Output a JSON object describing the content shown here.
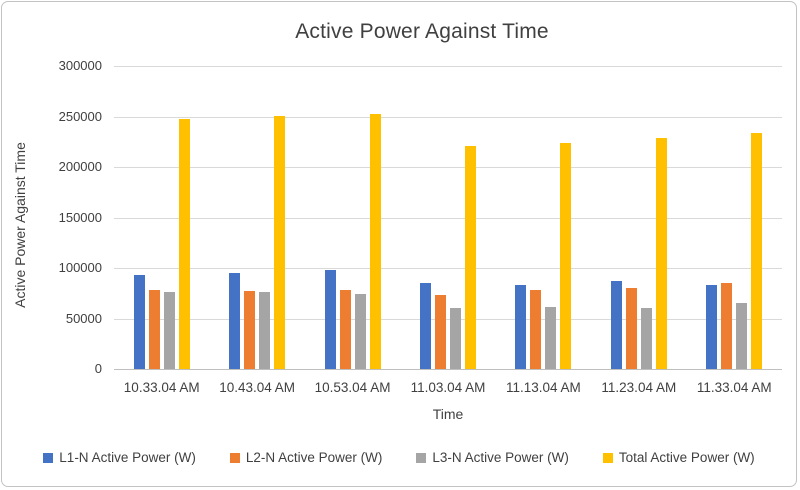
{
  "chart_data": {
    "type": "bar",
    "title": "Active Power Against Time",
    "xlabel": "Time",
    "ylabel": "Active Power Against Time",
    "categories": [
      "10.33.04 AM",
      "10.43.04 AM",
      "10.53.04 AM",
      "11.03.04 AM",
      "11.13.04 AM",
      "11.23.04 AM",
      "11.33.04 AM"
    ],
    "series": [
      {
        "name": "L1-N Active Power (W)",
        "color": "#4472C4",
        "values": [
          93000,
          95000,
          98000,
          85000,
          83500,
          87500,
          83500
        ]
      },
      {
        "name": "L2-N Active Power (W)",
        "color": "#ED7D31",
        "values": [
          78000,
          77000,
          78500,
          73500,
          78500,
          80000,
          85000
        ]
      },
      {
        "name": "L3-N Active Power (W)",
        "color": "#A5A5A5",
        "values": [
          76000,
          76500,
          74500,
          60000,
          61500,
          60500,
          65000
        ]
      },
      {
        "name": "Total Active Power (W)",
        "color": "#FFC000",
        "values": [
          247500,
          250500,
          252500,
          221000,
          224000,
          228500,
          233500
        ]
      }
    ],
    "ylim": [
      0,
      300000
    ],
    "ytick_step": 50000,
    "ytick_labels": [
      "0",
      "50000",
      "100000",
      "150000",
      "200000",
      "250000",
      "300000"
    ],
    "grid": "horizontal",
    "legend_position": "bottom",
    "colors": {
      "title_text": "#404040",
      "axis_text": "#404040",
      "gridline": "#d9d9d9",
      "axis_line": "#bfbfbf",
      "frame_border": "#c3c3c3",
      "background": "#ffffff"
    }
  }
}
